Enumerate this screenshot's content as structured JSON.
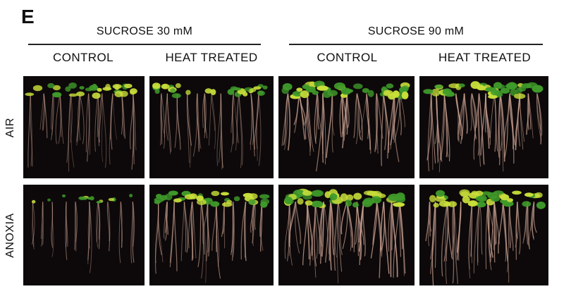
{
  "panel_letter": "E",
  "groups": [
    {
      "title": "SUCROSE 30 mM"
    },
    {
      "title": "SUCROSE 90 mM"
    }
  ],
  "columns": [
    {
      "label": "CONTROL"
    },
    {
      "label": "HEAT TREATED"
    },
    {
      "label": "CONTROL"
    },
    {
      "label": "HEAT TREATED"
    }
  ],
  "rows": [
    {
      "label": "AIR"
    },
    {
      "label": "ANOXIA"
    }
  ],
  "colors": {
    "background": "#0d090a",
    "leaf_green": "#3f9a2a",
    "leaf_yellow": "#c9df3a",
    "root": "#c8a090"
  },
  "photos": [
    {
      "row": "AIR",
      "col": "CONTROL",
      "group": "SUCROSE 30 mM",
      "density": 0.55,
      "root_bright": 0.45
    },
    {
      "row": "AIR",
      "col": "HEAT TREATED",
      "group": "SUCROSE 30 mM",
      "density": 0.55,
      "root_bright": 0.5
    },
    {
      "row": "AIR",
      "col": "CONTROL",
      "group": "SUCROSE 90 mM",
      "density": 0.8,
      "root_bright": 0.85
    },
    {
      "row": "AIR",
      "col": "HEAT TREATED",
      "group": "SUCROSE 90 mM",
      "density": 0.8,
      "root_bright": 0.85
    },
    {
      "row": "ANOXIA",
      "col": "CONTROL",
      "group": "SUCROSE 30 mM",
      "density": 0.2,
      "root_bright": 0.5
    },
    {
      "row": "ANOXIA",
      "col": "HEAT TREATED",
      "group": "SUCROSE 30 mM",
      "density": 0.65,
      "root_bright": 0.7
    },
    {
      "row": "ANOXIA",
      "col": "CONTROL",
      "group": "SUCROSE 90 mM",
      "density": 0.85,
      "root_bright": 0.95
    },
    {
      "row": "ANOXIA",
      "col": "HEAT TREATED",
      "group": "SUCROSE 90 mM",
      "density": 0.75,
      "root_bright": 0.8
    }
  ]
}
